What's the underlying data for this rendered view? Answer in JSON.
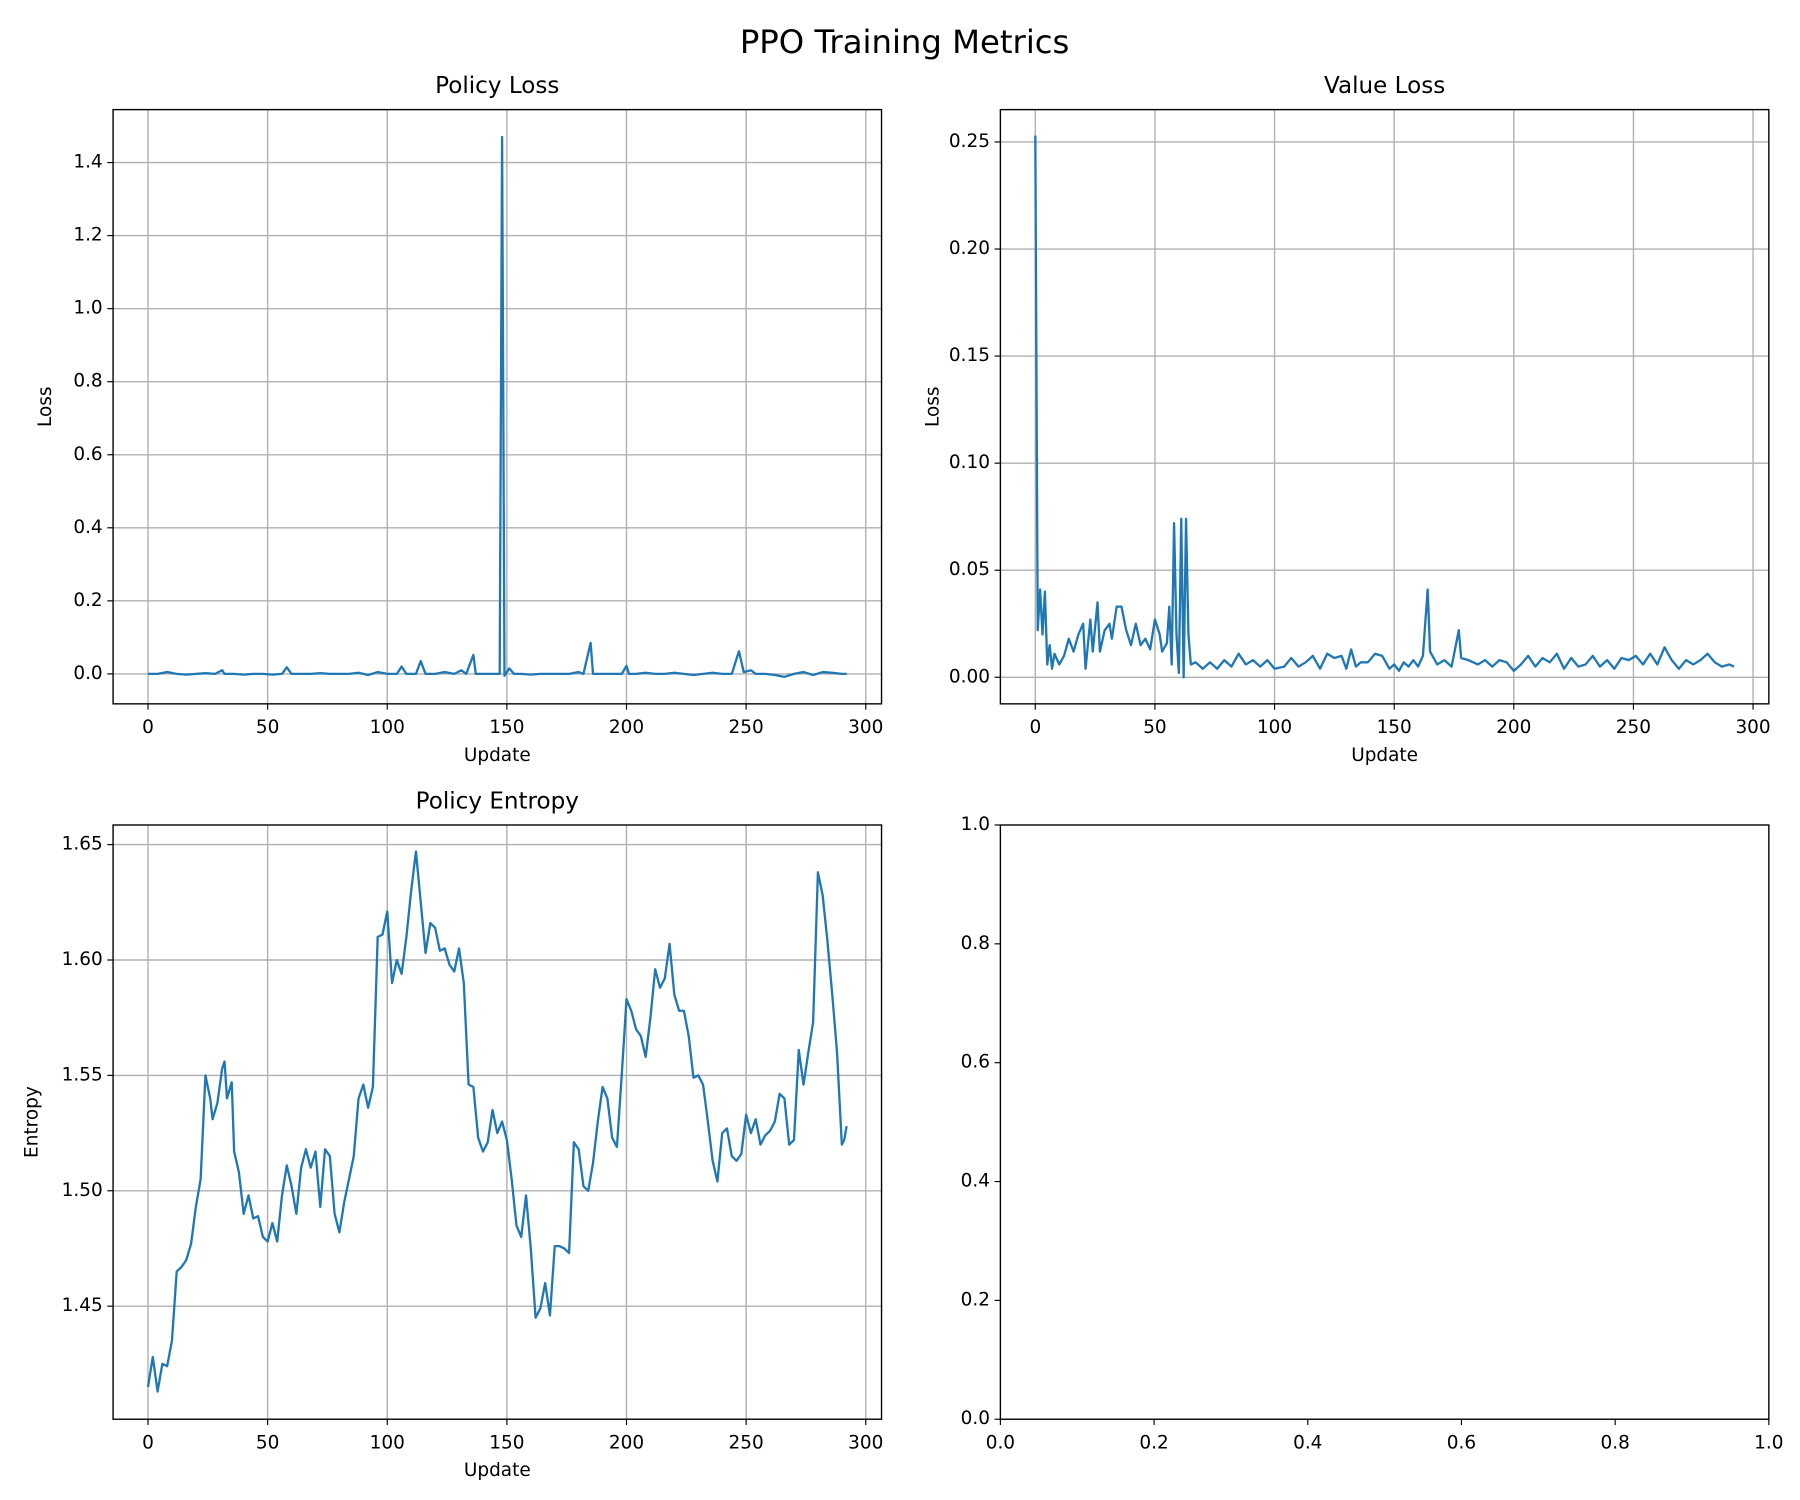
{
  "title": "PPO Training Metrics",
  "chart_data": [
    {
      "type": "line",
      "title": "Policy Loss",
      "xlabel": "Update",
      "ylabel": "Loss",
      "color": "#1f77b4",
      "grid": true,
      "xlim": [
        -14.6,
        306.6
      ],
      "ylim": [
        -0.082,
        1.545
      ],
      "xticks": [
        0,
        50,
        100,
        150,
        200,
        250,
        300
      ],
      "yticks": [
        {
          "value": 0,
          "label": "0.0"
        },
        0.2,
        0.4,
        0.6,
        0.8,
        {
          "value": 1,
          "label": "1.0"
        },
        1.2,
        1.4
      ],
      "x": [
        0,
        4,
        8,
        12,
        16,
        20,
        24,
        28,
        31,
        32,
        36,
        40,
        44,
        48,
        52,
        56,
        58,
        60,
        64,
        68,
        72,
        76,
        80,
        84,
        88,
        92,
        96,
        100,
        104,
        106,
        108,
        112,
        114,
        116,
        120,
        124,
        128,
        131,
        133,
        136,
        137,
        140,
        144,
        147,
        148,
        149,
        151,
        153,
        156,
        160,
        164,
        168,
        172,
        176,
        180,
        182,
        185,
        186,
        190,
        194,
        198,
        200,
        201,
        204,
        208,
        212,
        216,
        220,
        224,
        228,
        232,
        236,
        240,
        244,
        247,
        249,
        252,
        254,
        258,
        262,
        266,
        270,
        274,
        278,
        282,
        286,
        290,
        292
      ],
      "values": [
        0,
        0,
        0.005,
        0,
        -0.002,
        0,
        0.002,
        0,
        0.01,
        0,
        0,
        -0.002,
        0,
        0,
        -0.002,
        0,
        0.018,
        0,
        0,
        0,
        0.002,
        0,
        0,
        0,
        0.003,
        -0.003,
        0.005,
        0,
        0,
        0.02,
        0,
        0,
        0.035,
        0,
        0,
        0.005,
        0,
        0.01,
        0,
        0.052,
        0,
        0,
        0,
        0,
        1.47,
        -0.005,
        0.015,
        0,
        0,
        -0.002,
        0,
        0,
        0,
        0,
        0.005,
        0,
        0.085,
        0,
        0,
        0,
        0,
        0.022,
        0,
        0,
        0.003,
        0,
        0,
        0.003,
        0,
        -0.003,
        0,
        0.003,
        0,
        0,
        0.062,
        0.005,
        0.01,
        0,
        0,
        -0.003,
        -0.008,
        0,
        0.005,
        -0.003,
        0.005,
        0.003,
        0,
        0
      ]
    },
    {
      "type": "line",
      "title": "Value Loss",
      "xlabel": "Update",
      "ylabel": "Loss",
      "color": "#1f77b4",
      "grid": true,
      "xlim": [
        -14.6,
        306.6
      ],
      "ylim": [
        -0.0124,
        0.2651
      ],
      "xticks": [
        0,
        50,
        100,
        150,
        200,
        250,
        300
      ],
      "yticks": [
        {
          "value": 0,
          "label": "0.00"
        },
        {
          "value": 0.05,
          "label": "0.05"
        },
        {
          "value": 0.1,
          "label": "0.10"
        },
        {
          "value": 0.15,
          "label": "0.15"
        },
        {
          "value": 0.2,
          "label": "0.20"
        },
        {
          "value": 0.25,
          "label": "0.25"
        }
      ],
      "x": [
        0,
        1,
        2,
        3,
        4,
        5,
        6,
        7,
        8,
        10,
        12,
        14,
        16,
        18,
        20,
        21,
        23,
        24,
        26,
        27,
        29,
        31,
        32,
        34,
        36,
        38,
        40,
        42,
        44,
        46,
        48,
        50,
        52,
        53,
        55,
        56,
        57,
        58,
        59,
        60,
        61,
        62,
        63,
        64,
        65,
        67,
        70,
        73,
        76,
        79,
        82,
        85,
        88,
        91,
        94,
        97,
        100,
        104,
        107,
        110,
        113,
        116,
        119,
        122,
        125,
        128,
        130,
        132,
        134,
        136,
        139,
        142,
        145,
        148,
        150,
        152,
        154,
        156,
        158,
        160,
        162,
        164,
        165,
        168,
        171,
        174,
        177,
        178,
        181,
        185,
        188,
        191,
        194,
        197,
        200,
        203,
        206,
        209,
        212,
        215,
        218,
        221,
        224,
        227,
        230,
        233,
        236,
        239,
        242,
        245,
        248,
        251,
        254,
        257,
        260,
        263,
        266,
        269,
        272,
        275,
        278,
        281,
        284,
        287,
        290,
        292
      ],
      "values": [
        0.253,
        0.022,
        0.041,
        0.02,
        0.04,
        0.006,
        0.015,
        0.004,
        0.011,
        0.006,
        0.01,
        0.018,
        0.012,
        0.02,
        0.025,
        0.004,
        0.027,
        0.012,
        0.035,
        0.012,
        0.022,
        0.025,
        0.018,
        0.033,
        0.033,
        0.022,
        0.015,
        0.025,
        0.015,
        0.018,
        0.013,
        0.027,
        0.02,
        0.012,
        0.016,
        0.033,
        0.006,
        0.072,
        0.02,
        0.002,
        0.074,
        0,
        0.074,
        0.02,
        0.006,
        0.007,
        0.004,
        0.007,
        0.004,
        0.008,
        0.005,
        0.011,
        0.006,
        0.008,
        0.005,
        0.008,
        0.004,
        0.005,
        0.009,
        0.005,
        0.007,
        0.01,
        0.004,
        0.011,
        0.009,
        0.01,
        0.004,
        0.013,
        0.005,
        0.007,
        0.007,
        0.011,
        0.01,
        0.004,
        0.006,
        0.003,
        0.007,
        0.005,
        0.008,
        0.005,
        0.01,
        0.041,
        0.012,
        0.006,
        0.008,
        0.005,
        0.022,
        0.009,
        0.008,
        0.006,
        0.008,
        0.005,
        0.008,
        0.007,
        0.003,
        0.006,
        0.01,
        0.005,
        0.009,
        0.007,
        0.011,
        0.004,
        0.009,
        0.005,
        0.006,
        0.01,
        0.005,
        0.008,
        0.004,
        0.009,
        0.008,
        0.01,
        0.006,
        0.011,
        0.006,
        0.014,
        0.008,
        0.004,
        0.008,
        0.006,
        0.008,
        0.011,
        0.007,
        0.005,
        0.006,
        0.005
      ]
    },
    {
      "type": "line",
      "title": "Policy Entropy",
      "xlabel": "Update",
      "ylabel": "Entropy",
      "color": "#1f77b4",
      "grid": true,
      "xlim": [
        -14.6,
        306.6
      ],
      "ylim": [
        1.401,
        1.6585
      ],
      "xticks": [
        0,
        50,
        100,
        150,
        200,
        250,
        300
      ],
      "yticks": [
        1.45,
        {
          "value": 1.5,
          "label": "1.50"
        },
        1.55,
        {
          "value": 1.6,
          "label": "1.60"
        },
        1.65
      ],
      "x": [
        0,
        2,
        4,
        6,
        8,
        10,
        12,
        14,
        16,
        18,
        20,
        22,
        24,
        26,
        27,
        29,
        31,
        32,
        33,
        35,
        36,
        38,
        40,
        42,
        44,
        46,
        48,
        50,
        52,
        54,
        56,
        58,
        60,
        62,
        64,
        66,
        68,
        70,
        72,
        74,
        76,
        78,
        80,
        82,
        84,
        86,
        88,
        90,
        92,
        94,
        96,
        98,
        100,
        102,
        104,
        106,
        108,
        110,
        112,
        114,
        116,
        118,
        120,
        122,
        124,
        126,
        128,
        130,
        132,
        134,
        136,
        138,
        140,
        142,
        144,
        146,
        148,
        150,
        152,
        154,
        156,
        158,
        160,
        162,
        164,
        166,
        168,
        170,
        172,
        174,
        176,
        178,
        180,
        182,
        184,
        186,
        188,
        190,
        192,
        194,
        196,
        198,
        200,
        202,
        204,
        206,
        208,
        210,
        212,
        214,
        216,
        218,
        220,
        222,
        224,
        226,
        228,
        230,
        232,
        234,
        236,
        238,
        240,
        242,
        244,
        246,
        248,
        250,
        252,
        254,
        256,
        258,
        260,
        262,
        264,
        266,
        268,
        270,
        272,
        274,
        276,
        278,
        280,
        282,
        284,
        286,
        288,
        290,
        291,
        292
      ],
      "values": [
        1.415,
        1.428,
        1.413,
        1.425,
        1.424,
        1.435,
        1.465,
        1.467,
        1.47,
        1.477,
        1.493,
        1.505,
        1.55,
        1.54,
        1.531,
        1.538,
        1.553,
        1.556,
        1.54,
        1.547,
        1.517,
        1.508,
        1.49,
        1.498,
        1.488,
        1.489,
        1.48,
        1.478,
        1.486,
        1.478,
        1.498,
        1.511,
        1.502,
        1.49,
        1.51,
        1.518,
        1.51,
        1.517,
        1.493,
        1.518,
        1.515,
        1.49,
        1.482,
        1.495,
        1.505,
        1.515,
        1.54,
        1.546,
        1.536,
        1.545,
        1.61,
        1.611,
        1.621,
        1.59,
        1.6,
        1.594,
        1.61,
        1.63,
        1.647,
        1.625,
        1.603,
        1.616,
        1.614,
        1.604,
        1.605,
        1.598,
        1.595,
        1.605,
        1.59,
        1.546,
        1.545,
        1.523,
        1.517,
        1.521,
        1.535,
        1.525,
        1.53,
        1.522,
        1.505,
        1.485,
        1.48,
        1.498,
        1.475,
        1.445,
        1.449,
        1.46,
        1.446,
        1.476,
        1.476,
        1.475,
        1.473,
        1.521,
        1.518,
        1.502,
        1.5,
        1.512,
        1.53,
        1.545,
        1.54,
        1.523,
        1.519,
        1.55,
        1.583,
        1.578,
        1.57,
        1.567,
        1.558,
        1.575,
        1.596,
        1.588,
        1.592,
        1.607,
        1.585,
        1.578,
        1.578,
        1.567,
        1.549,
        1.55,
        1.546,
        1.53,
        1.513,
        1.504,
        1.525,
        1.527,
        1.515,
        1.513,
        1.516,
        1.533,
        1.525,
        1.531,
        1.52,
        1.524,
        1.526,
        1.53,
        1.542,
        1.54,
        1.52,
        1.522,
        1.561,
        1.546,
        1.56,
        1.573,
        1.638,
        1.628,
        1.608,
        1.585,
        1.56,
        1.52,
        1.522,
        1.528
      ]
    },
    {
      "type": "empty",
      "grid": false,
      "xlim": [
        0,
        1
      ],
      "ylim": [
        0,
        1
      ],
      "xticks": [
        {
          "value": 0,
          "label": "0.0"
        },
        0.2,
        0.4,
        0.6,
        0.8,
        {
          "value": 1,
          "label": "1.0"
        }
      ],
      "yticks": [
        {
          "value": 0,
          "label": "0.0"
        },
        0.2,
        0.4,
        0.6,
        0.8,
        {
          "value": 1,
          "label": "1.0"
        }
      ]
    }
  ]
}
